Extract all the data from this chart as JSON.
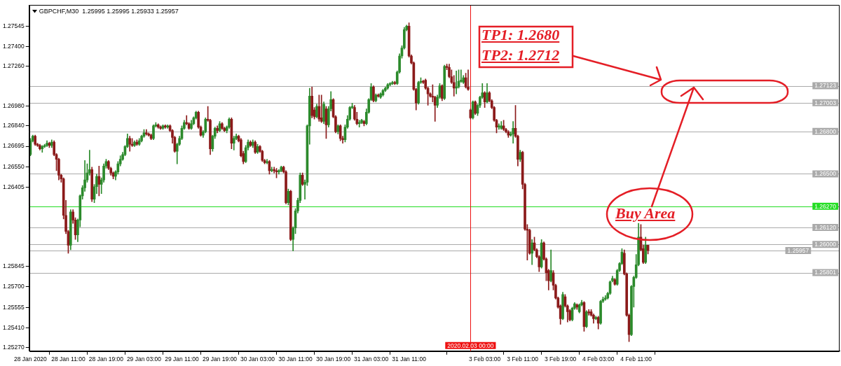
{
  "chart_data": {
    "type": "candlestick",
    "title": "GBPCHF,M30  1.25995 1.25995 1.25933 1.25957",
    "categories": [
      "28 Jan 2020",
      null,
      null,
      null,
      null,
      null,
      null,
      null,
      null,
      null,
      null,
      null,
      null,
      null,
      null,
      null,
      "28 Jan 11:00",
      null,
      null,
      null,
      null,
      null,
      null,
      null,
      null,
      null,
      null,
      null,
      null,
      null,
      null,
      null,
      "28 Jan 19:00",
      null,
      null,
      null,
      null,
      null,
      null,
      null,
      null,
      null,
      null,
      null,
      null,
      null,
      null,
      null,
      "29 Jan 03:00",
      null,
      null,
      null,
      null,
      null,
      null,
      null,
      null,
      null,
      null,
      null,
      null,
      null,
      null,
      null,
      "29 Jan 11:00",
      null,
      null,
      null,
      null,
      null,
      null,
      null,
      null,
      null,
      null,
      null,
      null,
      null,
      null,
      null,
      "29 Jan 19:00",
      null,
      null,
      null,
      null,
      null,
      null,
      null,
      null,
      null,
      null,
      null,
      null,
      null,
      null,
      null,
      "30 Jan 03:00",
      null,
      null,
      null,
      null,
      null,
      null,
      null,
      null,
      null,
      null,
      null,
      null,
      null,
      null,
      null,
      "30 Jan 11:00",
      null,
      null,
      null,
      null,
      null,
      null,
      null,
      null,
      null,
      null,
      null,
      null,
      null,
      null,
      null,
      "30 Jan 19:00",
      null,
      null,
      null,
      null,
      null,
      null,
      null,
      null,
      null,
      null,
      null,
      null,
      null,
      null,
      null,
      "31 Jan 03:00",
      null,
      null,
      null,
      null,
      null,
      null,
      null,
      null,
      null,
      null,
      null,
      null,
      null,
      null,
      null,
      "31 Jan 11:00",
      null,
      null,
      null,
      null,
      null,
      null,
      null,
      null,
      null,
      null,
      null,
      null,
      null,
      null,
      null,
      null,
      null,
      null,
      null,
      null,
      null,
      null,
      null,
      null,
      null,
      "2020.02.03 00:00",
      null,
      null,
      null,
      null,
      null,
      "3 Feb 03:00",
      null,
      null,
      null,
      null,
      null,
      null,
      null,
      null,
      null,
      null,
      null,
      null,
      null,
      null,
      null,
      "3 Feb 11:00",
      null,
      null,
      null,
      null,
      null,
      null,
      null,
      null,
      null,
      null,
      null,
      null,
      null,
      null,
      null,
      "3 Feb 19:00",
      null,
      null,
      null,
      null,
      null,
      null,
      null,
      null,
      null,
      null,
      null,
      null,
      null,
      null,
      null,
      "4 Feb 03:00",
      null,
      null,
      null,
      null,
      null,
      null,
      null,
      null,
      null,
      null,
      null,
      null,
      null,
      null,
      null,
      "4 Feb 11:00",
      null,
      null,
      null,
      null,
      null
    ],
    "ohlc": [
      [
        1.26636,
        1.2675,
        1.26628,
        1.26734
      ],
      [
        1.26734,
        1.26774,
        1.26725,
        1.26766
      ],
      [
        1.26766,
        1.26774,
        1.26701,
        1.26709
      ],
      [
        1.26709,
        1.26717,
        1.26693,
        1.26701
      ],
      [
        1.26701,
        1.26709,
        1.26668,
        1.26677
      ],
      [
        1.26677,
        1.26701,
        1.26652,
        1.26693
      ],
      [
        1.26693,
        1.26709,
        1.26685,
        1.26701
      ],
      [
        1.26701,
        1.26734,
        1.26693,
        1.26717
      ],
      [
        1.26717,
        1.26725,
        1.26685,
        1.26701
      ],
      [
        1.26701,
        1.26741,
        1.26685,
        1.26725
      ],
      [
        1.26725,
        1.26734,
        1.26628,
        1.26636
      ],
      [
        1.26636,
        1.26644,
        1.26522,
        1.26603
      ],
      [
        1.26603,
        1.26611,
        1.26457,
        1.2649
      ],
      [
        1.2649,
        1.26498,
        1.26441,
        1.26464
      ],
      [
        1.26464,
        1.26472,
        1.26181,
        1.26206
      ],
      [
        1.26206,
        1.26312,
        1.26076,
        1.26092
      ],
      [
        1.26092,
        1.261,
        1.25938,
        1.25995
      ],
      [
        1.25995,
        1.26246,
        1.25962,
        1.2623
      ],
      [
        1.2623,
        1.26246,
        1.2615,
        1.26173
      ],
      [
        1.26173,
        1.26189,
        1.26035,
        1.26068
      ],
      [
        1.26068,
        1.26181,
        1.26019,
        1.26173
      ],
      [
        1.26173,
        1.26352,
        1.26125,
        1.26344
      ],
      [
        1.26344,
        1.26417,
        1.2632,
        1.26401
      ],
      [
        1.26401,
        1.26595,
        1.26376,
        1.26457
      ],
      [
        1.26457,
        1.26571,
        1.26441,
        1.26506
      ],
      [
        1.26506,
        1.26668,
        1.2649,
        1.2653
      ],
      [
        1.2653,
        1.26547,
        1.26303,
        1.2632
      ],
      [
        1.2632,
        1.26425,
        1.26295,
        1.26409
      ],
      [
        1.26409,
        1.26498,
        1.2636,
        1.26482
      ],
      [
        1.26482,
        1.26555,
        1.26344,
        1.26425
      ],
      [
        1.26425,
        1.26472,
        1.2636,
        1.26457
      ],
      [
        1.26457,
        1.26571,
        1.26441,
        1.26555
      ],
      [
        1.26555,
        1.26603,
        1.26539,
        1.26587
      ],
      [
        1.26587,
        1.26595,
        1.2653,
        1.26539
      ],
      [
        1.26539,
        1.26547,
        1.2649,
        1.26506
      ],
      [
        1.26506,
        1.26514,
        1.26464,
        1.26482
      ],
      [
        1.26482,
        1.26522,
        1.26457,
        1.26514
      ],
      [
        1.26514,
        1.26587,
        1.26498,
        1.26571
      ],
      [
        1.26571,
        1.26628,
        1.26555,
        1.26603
      ],
      [
        1.26603,
        1.26652,
        1.26595,
        1.26636
      ],
      [
        1.26636,
        1.26701,
        1.26628,
        1.26693
      ],
      [
        1.26693,
        1.26782,
        1.26685,
        1.2675
      ],
      [
        1.2675,
        1.26766,
        1.2666,
        1.26709
      ],
      [
        1.26709,
        1.2675,
        1.26693,
        1.26701
      ],
      [
        1.26701,
        1.26734,
        1.26693,
        1.26725
      ],
      [
        1.26725,
        1.26741,
        1.26701,
        1.26709
      ],
      [
        1.26709,
        1.2675,
        1.26701,
        1.26734
      ],
      [
        1.26734,
        1.26774,
        1.26725,
        1.26766
      ],
      [
        1.26766,
        1.26814,
        1.26758,
        1.2679
      ],
      [
        1.2679,
        1.26814,
        1.26774,
        1.26782
      ],
      [
        1.26782,
        1.2679,
        1.26766,
        1.26774
      ],
      [
        1.26774,
        1.26782,
        1.26741,
        1.2675
      ],
      [
        1.2675,
        1.26847,
        1.26741,
        1.26839
      ],
      [
        1.26839,
        1.26863,
        1.26831,
        1.26847
      ],
      [
        1.26847,
        1.26855,
        1.26822,
        1.26831
      ],
      [
        1.26831,
        1.26839,
        1.26814,
        1.26822
      ],
      [
        1.26822,
        1.26847,
        1.26814,
        1.26839
      ],
      [
        1.26839,
        1.26847,
        1.26822,
        1.26831
      ],
      [
        1.26831,
        1.26847,
        1.26822,
        1.26839
      ],
      [
        1.26839,
        1.26847,
        1.26798,
        1.26806
      ],
      [
        1.26806,
        1.26814,
        1.26717,
        1.26758
      ],
      [
        1.26758,
        1.26766,
        1.26652,
        1.2666
      ],
      [
        1.2666,
        1.26717,
        1.26571,
        1.26709
      ],
      [
        1.26709,
        1.26766,
        1.26701,
        1.2675
      ],
      [
        1.2675,
        1.26839,
        1.26741,
        1.26822
      ],
      [
        1.26822,
        1.26879,
        1.26814,
        1.26863
      ],
      [
        1.26863,
        1.26912,
        1.26847,
        1.26855
      ],
      [
        1.26855,
        1.26863,
        1.26814,
        1.26822
      ],
      [
        1.26822,
        1.26879,
        1.26814,
        1.26855
      ],
      [
        1.26855,
        1.26904,
        1.26847,
        1.26896
      ],
      [
        1.26896,
        1.26944,
        1.26887,
        1.26936
      ],
      [
        1.26936,
        1.26944,
        1.26822,
        1.26831
      ],
      [
        1.26831,
        1.26839,
        1.26766,
        1.26774
      ],
      [
        1.26774,
        1.26806,
        1.26758,
        1.26798
      ],
      [
        1.26798,
        1.26896,
        1.2679,
        1.26887
      ],
      [
        1.26887,
        1.26977,
        1.26871,
        1.26879
      ],
      [
        1.26879,
        1.26887,
        1.26636,
        1.26677
      ],
      [
        1.26677,
        1.26774,
        1.2666,
        1.26766
      ],
      [
        1.26766,
        1.26831,
        1.2675,
        1.26822
      ],
      [
        1.26822,
        1.26839,
        1.2679,
        1.26806
      ],
      [
        1.26806,
        1.26871,
        1.26798,
        1.26855
      ],
      [
        1.26855,
        1.26863,
        1.26814,
        1.26822
      ],
      [
        1.26822,
        1.26831,
        1.26798,
        1.26806
      ],
      [
        1.26806,
        1.26839,
        1.2679,
        1.26831
      ],
      [
        1.26831,
        1.26896,
        1.26822,
        1.26887
      ],
      [
        1.26887,
        1.26896,
        1.26677,
        1.26717
      ],
      [
        1.26717,
        1.26766,
        1.26668,
        1.2675
      ],
      [
        1.2675,
        1.26782,
        1.26741,
        1.26766
      ],
      [
        1.26766,
        1.26774,
        1.26725,
        1.26734
      ],
      [
        1.26741,
        1.2675,
        1.2662,
        1.26628
      ],
      [
        1.26644,
        1.2666,
        1.26571,
        1.26587
      ],
      [
        1.26587,
        1.26701,
        1.26579,
        1.26685
      ],
      [
        1.26685,
        1.26741,
        1.26668,
        1.26725
      ],
      [
        1.26725,
        1.26734,
        1.26693,
        1.26701
      ],
      [
        1.26701,
        1.26741,
        1.26685,
        1.26725
      ],
      [
        1.26725,
        1.26734,
        1.26644,
        1.26652
      ],
      [
        1.26652,
        1.26709,
        1.26644,
        1.26693
      ],
      [
        1.26693,
        1.26701,
        1.26652,
        1.2666
      ],
      [
        1.2666,
        1.26668,
        1.26587,
        1.26595
      ],
      [
        1.26595,
        1.26603,
        1.26571,
        1.26579
      ],
      [
        1.26579,
        1.26603,
        1.26571,
        1.26587
      ],
      [
        1.26587,
        1.26595,
        1.26498,
        1.26522
      ],
      [
        1.26522,
        1.26547,
        1.26514,
        1.2653
      ],
      [
        1.2653,
        1.26547,
        1.26506,
        1.26522
      ],
      [
        1.26522,
        1.26539,
        1.26472,
        1.26514
      ],
      [
        1.26514,
        1.2653,
        1.26498,
        1.26522
      ],
      [
        1.26522,
        1.26555,
        1.26514,
        1.26547
      ],
      [
        1.26547,
        1.26555,
        1.26506,
        1.26514
      ],
      [
        1.26514,
        1.26522,
        1.26287,
        1.26295
      ],
      [
        1.26295,
        1.26393,
        1.26279,
        1.26376
      ],
      [
        1.26376,
        1.26384,
        1.26027,
        1.26035
      ],
      [
        1.26035,
        1.26125,
        1.25954,
        1.26117
      ],
      [
        1.26117,
        1.26254,
        1.26076,
        1.26238
      ],
      [
        1.26238,
        1.26328,
        1.26222,
        1.26312
      ],
      [
        1.26312,
        1.26506,
        1.26295,
        1.2649
      ],
      [
        1.2649,
        1.26506,
        1.26417,
        1.26425
      ],
      [
        1.26425,
        1.26457,
        1.2632,
        1.26441
      ],
      [
        1.26441,
        1.26847,
        1.26417,
        1.26839
      ],
      [
        1.26839,
        1.27106,
        1.26709,
        1.2705
      ],
      [
        1.2705,
        1.27115,
        1.26896,
        1.26912
      ],
      [
        1.26952,
        1.26969,
        1.26887,
        1.26904
      ],
      [
        1.26904,
        1.26993,
        1.26896,
        1.26977
      ],
      [
        1.26977,
        1.27058,
        1.26871,
        1.26887
      ],
      [
        1.26896,
        1.27058,
        1.26863,
        1.26871
      ],
      [
        1.26871,
        1.27009,
        1.26855,
        1.26993
      ],
      [
        1.2696,
        1.26977,
        1.2675,
        1.26847
      ],
      [
        1.26847,
        1.26977,
        1.26831,
        1.2696
      ],
      [
        1.2696,
        1.27082,
        1.26944,
        1.27025
      ],
      [
        1.27025,
        1.27033,
        1.26896,
        1.26904
      ],
      [
        1.26904,
        1.26912,
        1.2679,
        1.26798
      ],
      [
        1.26798,
        1.26847,
        1.26782,
        1.26839
      ],
      [
        1.26839,
        1.26847,
        1.26734,
        1.2675
      ],
      [
        1.2675,
        1.26766,
        1.26717,
        1.26741
      ],
      [
        1.26741,
        1.26847,
        1.26725,
        1.26831
      ],
      [
        1.26831,
        1.26912,
        1.26822,
        1.26887
      ],
      [
        1.26887,
        1.26977,
        1.26879,
        1.26969
      ],
      [
        1.26969,
        1.27001,
        1.2696,
        1.26977
      ],
      [
        1.26969,
        1.26985,
        1.26879,
        1.26887
      ],
      [
        1.26887,
        1.26936,
        1.26847,
        1.26855
      ],
      [
        1.26855,
        1.26879,
        1.26831,
        1.26863
      ],
      [
        1.26863,
        1.26887,
        1.26855,
        1.26879
      ],
      [
        1.26871,
        1.26879,
        1.26839,
        1.26855
      ],
      [
        1.26855,
        1.2696,
        1.26847,
        1.26936
      ],
      [
        1.26936,
        1.27033,
        1.26928,
        1.27025
      ],
      [
        1.27025,
        1.27139,
        1.27017,
        1.27115
      ],
      [
        1.27115,
        1.27123,
        1.27009,
        1.27017
      ],
      [
        1.27017,
        1.27066,
        1.27009,
        1.27058
      ],
      [
        1.27058,
        1.27066,
        1.27042,
        1.2705
      ],
      [
        1.27042,
        1.27074,
        1.27033,
        1.27066
      ],
      [
        1.27058,
        1.27098,
        1.2705,
        1.2709
      ],
      [
        1.2709,
        1.27115,
        1.27082,
        1.27106
      ],
      [
        1.27106,
        1.27139,
        1.27098,
        1.27131
      ],
      [
        1.27131,
        1.27147,
        1.27123,
        1.27139
      ],
      [
        1.27139,
        1.27155,
        1.27131,
        1.27147
      ],
      [
        1.27147,
        1.27155,
        1.27131,
        1.27139
      ],
      [
        1.27139,
        1.27228,
        1.27131,
        1.2722
      ],
      [
        1.2722,
        1.2735,
        1.27212,
        1.27334
      ],
      [
        1.27334,
        1.27407,
        1.27318,
        1.27391
      ],
      [
        1.27391,
        1.27537,
        1.27383,
        1.2752
      ],
      [
        1.2752,
        1.27553,
        1.27512,
        1.27545
      ],
      [
        1.27545,
        1.27569,
        1.27326,
        1.27334
      ],
      [
        1.27334,
        1.27342,
        1.27277,
        1.27285
      ],
      [
        1.27285,
        1.27293,
        1.2709,
        1.27098
      ],
      [
        1.27098,
        1.27106,
        1.26952,
        1.27001
      ],
      [
        1.27001,
        1.27155,
        1.26993,
        1.27147
      ],
      [
        1.27147,
        1.2718,
        1.27139,
        1.27155
      ],
      [
        1.27155,
        1.27163,
        1.27139,
        1.27147
      ],
      [
        1.27163,
        1.27171,
        1.27098,
        1.27106
      ],
      [
        1.27106,
        1.27115,
        1.26985,
        1.27066
      ],
      [
        1.27066,
        1.27074,
        1.27042,
        1.2705
      ],
      [
        1.2705,
        1.27131,
        1.27009,
        1.27042
      ],
      [
        1.27042,
        1.2705,
        1.26871,
        1.26985
      ],
      [
        1.26985,
        1.27058,
        1.26969,
        1.27042
      ],
      [
        1.27042,
        1.27139,
        1.27033,
        1.27123
      ],
      [
        1.27123,
        1.27131,
        1.27017,
        1.27033
      ],
      [
        1.27033,
        1.27269,
        1.27025,
        1.27261
      ],
      [
        1.27261,
        1.27277,
        1.27236,
        1.27253
      ],
      [
        1.27253,
        1.27277,
        1.2718,
        1.27188
      ],
      [
        1.27188,
        1.27236,
        1.27139,
        1.27147
      ],
      [
        1.27147,
        1.27196,
        1.2705,
        1.27106
      ],
      [
        1.27106,
        1.27228,
        1.27066,
        1.27115
      ],
      [
        1.27115,
        1.27236,
        1.27106,
        1.27155
      ],
      [
        1.27155,
        1.27236,
        1.27147,
        1.27163
      ],
      [
        1.27147,
        1.27196,
        1.27139,
        1.2718
      ],
      [
        1.2718,
        1.27212,
        1.27106,
        1.27115
      ],
      [
        1.27115,
        1.27236,
        1.2709,
        1.27098
      ],
      [
        1.26952,
        1.2696,
        1.26887,
        1.26896
      ],
      [
        1.26896,
        1.27017,
        1.26887,
        1.27009
      ],
      [
        1.27009,
        1.27017,
        1.2692,
        1.26928
      ],
      [
        1.26928,
        1.26993,
        1.26912,
        1.26985
      ],
      [
        1.26985,
        1.2705,
        1.26969,
        1.27042
      ],
      [
        1.27042,
        1.27139,
        1.27033,
        1.27074
      ],
      [
        1.27074,
        1.27082,
        1.26969,
        1.27009
      ],
      [
        1.27009,
        1.27139,
        1.27001,
        1.27074
      ],
      [
        1.27074,
        1.27082,
        1.27009,
        1.27017
      ],
      [
        1.27017,
        1.27025,
        1.2696,
        1.26969
      ],
      [
        1.26969,
        1.26977,
        1.26871,
        1.26879
      ],
      [
        1.26879,
        1.26887,
        1.2679,
        1.26831
      ],
      [
        1.26831,
        1.26855,
        1.26814,
        1.26839
      ],
      [
        1.26822,
        1.26871,
        1.26814,
        1.26839
      ],
      [
        1.26839,
        1.26879,
        1.26806,
        1.26814
      ],
      [
        1.26814,
        1.26822,
        1.2679,
        1.26798
      ],
      [
        1.26798,
        1.26806,
        1.26758,
        1.26774
      ],
      [
        1.26774,
        1.26798,
        1.26766,
        1.26782
      ],
      [
        1.26782,
        1.26871,
        1.26717,
        1.26822
      ],
      [
        1.26822,
        1.26985,
        1.26758,
        1.26766
      ],
      [
        1.26766,
        1.26774,
        1.26555,
        1.26603
      ],
      [
        1.26603,
        1.26668,
        1.26587,
        1.26652
      ],
      [
        1.26652,
        1.2666,
        1.26393,
        1.26425
      ],
      [
        1.26425,
        1.26433,
        1.261,
        1.26109
      ],
      [
        1.26109,
        1.26141,
        1.25889,
        1.261
      ],
      [
        1.261,
        1.26109,
        1.2593,
        1.25938
      ],
      [
        1.25938,
        1.26035,
        1.25857,
        1.26011
      ],
      [
        1.26011,
        1.26052,
        1.25954,
        1.25962
      ],
      [
        1.25962,
        1.2597,
        1.25906,
        1.25914
      ],
      [
        1.25914,
        1.25922,
        1.25808,
        1.25841
      ],
      [
        1.25841,
        1.26035,
        1.25833,
        1.26011
      ],
      [
        1.26011,
        1.26019,
        1.25889,
        1.25897
      ],
      [
        1.25897,
        1.25906,
        1.25743,
        1.258
      ],
      [
        1.25816,
        1.25824,
        1.25678,
        1.25743
      ],
      [
        1.25743,
        1.25962,
        1.25735,
        1.25816
      ],
      [
        1.258,
        1.25816,
        1.25678,
        1.25711
      ],
      [
        1.25711,
        1.25719,
        1.25613,
        1.25621
      ],
      [
        1.25621,
        1.25629,
        1.25549,
        1.25557
      ],
      [
        1.25565,
        1.25573,
        1.25435,
        1.25475
      ],
      [
        1.25475,
        1.25662,
        1.25467,
        1.25646
      ],
      [
        1.2563,
        1.25646,
        1.25557,
        1.25565
      ],
      [
        1.25565,
        1.25573,
        1.25451,
        1.25524
      ],
      [
        1.25532,
        1.2554,
        1.25459,
        1.25467
      ],
      [
        1.25467,
        1.25557,
        1.25459,
        1.25549
      ],
      [
        1.25549,
        1.25589,
        1.2554,
        1.25581
      ],
      [
        1.25573,
        1.25581,
        1.2554,
        1.25557
      ],
      [
        1.25524,
        1.25581,
        1.25516,
        1.25573
      ],
      [
        1.25573,
        1.25605,
        1.25565,
        1.25589
      ],
      [
        1.25589,
        1.25597,
        1.25386,
        1.25419
      ],
      [
        1.25419,
        1.25532,
        1.25411,
        1.25524
      ],
      [
        1.25524,
        1.2554,
        1.255,
        1.25516
      ],
      [
        1.25524,
        1.2554,
        1.25492,
        1.255
      ],
      [
        1.255,
        1.25508,
        1.25443,
        1.25475
      ],
      [
        1.25475,
        1.25492,
        1.25467,
        1.25484
      ],
      [
        1.25484,
        1.25492,
        1.25402,
        1.25443
      ],
      [
        1.25443,
        1.25605,
        1.25435,
        1.25598
      ],
      [
        1.25598,
        1.25629,
        1.25589,
        1.25613
      ],
      [
        1.25613,
        1.25638,
        1.25605,
        1.25621
      ],
      [
        1.25621,
        1.25662,
        1.25613,
        1.25654
      ],
      [
        1.25654,
        1.25743,
        1.25646,
        1.25735
      ],
      [
        1.25743,
        1.25776,
        1.25735,
        1.2576
      ],
      [
        1.25751,
        1.2576,
        1.25711,
        1.25719
      ],
      [
        1.25719,
        1.25824,
        1.25711,
        1.25816
      ],
      [
        1.25816,
        1.25873,
        1.25808,
        1.25865
      ],
      [
        1.25865,
        1.2597,
        1.25857,
        1.25946
      ],
      [
        1.25938,
        1.25962,
        1.25784,
        1.25792
      ],
      [
        1.25792,
        1.258,
        1.25492,
        1.255
      ],
      [
        1.255,
        1.25508,
        1.25313,
        1.25362
      ],
      [
        1.25362,
        1.25711,
        1.25354,
        1.25703
      ],
      [
        1.25703,
        1.25776,
        1.25557,
        1.25767
      ],
      [
        1.25767,
        1.2593,
        1.2576,
        1.25857
      ],
      [
        1.25857,
        1.2615,
        1.25849,
        1.26052
      ],
      [
        1.26052,
        1.26141,
        1.25954,
        1.25962
      ],
      [
        1.2597,
        1.25995,
        1.25865,
        1.25873
      ],
      [
        1.25873,
        1.26052,
        1.25865,
        1.25995
      ],
      [
        1.25995,
        1.25995,
        1.25933,
        1.25957
      ]
    ],
    "colors": [
      "#2b8a2b",
      "#2b8a2b",
      "#8b1a1a",
      "#8b1a1a",
      "#8b1a1a",
      "#2b8a2b",
      "#2b8a2b",
      "#2b8a2b",
      "#8b1a1a",
      "#2b8a2b",
      "#8b1a1a",
      "#8b1a1a",
      "#8b1a1a",
      "#8b1a1a",
      "#8b1a1a",
      "#8b1a1a",
      "#8b1a1a",
      "#2b8a2b",
      "#8b1a1a",
      "#8b1a1a",
      "#2b8a2b",
      "#2b8a2b",
      "#2b8a2b",
      "#2b8a2b",
      "#2b8a2b",
      "#2b8a2b",
      "#8b1a1a",
      "#2b8a2b",
      "#2b8a2b",
      "#8b1a1a",
      "#2b8a2b",
      "#2b8a2b",
      "#2b8a2b",
      "#8b1a1a",
      "#8b1a1a",
      "#8b1a1a",
      "#2b8a2b",
      "#2b8a2b",
      "#2b8a2b",
      "#2b8a2b",
      "#2b8a2b",
      "#2b8a2b",
      "#8b1a1a",
      "#8b1a1a",
      "#2b8a2b",
      "#8b1a1a",
      "#2b8a2b",
      "#2b8a2b",
      "#2b8a2b",
      "#8b1a1a",
      "#8b1a1a",
      "#8b1a1a",
      "#2b8a2b",
      "#2b8a2b",
      "#8b1a1a",
      "#8b1a1a",
      "#2b8a2b",
      "#8b1a1a",
      "#2b8a2b",
      "#8b1a1a",
      "#8b1a1a",
      "#8b1a1a",
      "#2b8a2b",
      "#2b8a2b",
      "#2b8a2b",
      "#2b8a2b",
      "#8b1a1a",
      "#8b1a1a",
      "#2b8a2b",
      "#2b8a2b",
      "#2b8a2b",
      "#8b1a1a",
      "#8b1a1a",
      "#2b8a2b",
      "#2b8a2b",
      "#8b1a1a",
      "#8b1a1a",
      "#2b8a2b",
      "#2b8a2b",
      "#8b1a1a",
      "#2b8a2b",
      "#8b1a1a",
      "#8b1a1a",
      "#2b8a2b",
      "#2b8a2b",
      "#8b1a1a",
      "#2b8a2b",
      "#2b8a2b",
      "#8b1a1a",
      "#8b1a1a",
      "#8b1a1a",
      "#2b8a2b",
      "#2b8a2b",
      "#8b1a1a",
      "#2b8a2b",
      "#8b1a1a",
      "#2b8a2b",
      "#8b1a1a",
      "#8b1a1a",
      "#8b1a1a",
      "#2b8a2b",
      "#8b1a1a",
      "#2b8a2b",
      "#8b1a1a",
      "#8b1a1a",
      "#2b8a2b",
      "#2b8a2b",
      "#8b1a1a",
      "#8b1a1a",
      "#2b8a2b",
      "#8b1a1a",
      "#2b8a2b",
      "#2b8a2b",
      "#2b8a2b",
      "#2b8a2b",
      "#8b1a1a",
      "#2b8a2b",
      "#2b8a2b",
      "#2b8a2b",
      "#8b1a1a",
      "#8b1a1a",
      "#2b8a2b",
      "#8b1a1a",
      "#8b1a1a",
      "#2b8a2b",
      "#8b1a1a",
      "#2b8a2b",
      "#2b8a2b",
      "#8b1a1a",
      "#8b1a1a",
      "#2b8a2b",
      "#8b1a1a",
      "#8b1a1a",
      "#2b8a2b",
      "#2b8a2b",
      "#2b8a2b",
      "#2b8a2b",
      "#8b1a1a",
      "#8b1a1a",
      "#2b8a2b",
      "#2b8a2b",
      "#8b1a1a",
      "#2b8a2b",
      "#2b8a2b",
      "#2b8a2b",
      "#8b1a1a",
      "#2b8a2b",
      "#8b1a1a",
      "#2b8a2b",
      "#2b8a2b",
      "#2b8a2b",
      "#2b8a2b",
      "#2b8a2b",
      "#2b8a2b",
      "#8b1a1a",
      "#2b8a2b",
      "#2b8a2b",
      "#2b8a2b",
      "#2b8a2b",
      "#2b8a2b",
      "#8b1a1a",
      "#8b1a1a",
      "#8b1a1a",
      "#8b1a1a",
      "#2b8a2b",
      "#2b8a2b",
      "#8b1a1a",
      "#8b1a1a",
      "#8b1a1a",
      "#8b1a1a",
      "#8b1a1a",
      "#8b1a1a",
      "#2b8a2b",
      "#2b8a2b",
      "#8b1a1a",
      "#2b8a2b",
      "#8b1a1a",
      "#8b1a1a",
      "#8b1a1a",
      "#8b1a1a",
      "#2b8a2b",
      "#2b8a2b",
      "#2b8a2b",
      "#2b8a2b",
      "#8b1a1a",
      "#8b1a1a",
      "#8b1a1a",
      "#2b8a2b",
      "#8b1a1a",
      "#2b8a2b",
      "#2b8a2b",
      "#2b8a2b",
      "#8b1a1a",
      "#2b8a2b",
      "#8b1a1a",
      "#8b1a1a",
      "#8b1a1a",
      "#8b1a1a",
      "#2b8a2b",
      "#2b8a2b",
      "#8b1a1a",
      "#8b1a1a",
      "#8b1a1a",
      "#2b8a2b",
      "#2b8a2b",
      "#8b1a1a",
      "#8b1a1a",
      "#2b8a2b",
      "#8b1a1a",
      "#8b1a1a",
      "#8b1a1a",
      "#8b1a1a",
      "#2b8a2b",
      "#8b1a1a",
      "#8b1a1a",
      "#8b1a1a",
      "#2b8a2b",
      "#8b1a1a",
      "#8b1a1a",
      "#8b1a1a",
      "#2b8a2b",
      "#8b1a1a",
      "#8b1a1a",
      "#8b1a1a",
      "#8b1a1a",
      "#2b8a2b",
      "#8b1a1a",
      "#8b1a1a",
      "#8b1a1a",
      "#2b8a2b",
      "#2b8a2b",
      "#8b1a1a",
      "#2b8a2b",
      "#2b8a2b",
      "#8b1a1a",
      "#2b8a2b",
      "#8b1a1a",
      "#8b1a1a",
      "#8b1a1a",
      "#2b8a2b",
      "#8b1a1a",
      "#2b8a2b",
      "#2b8a2b",
      "#2b8a2b",
      "#2b8a2b",
      "#2b8a2b",
      "#2b8a2b",
      "#8b1a1a",
      "#2b8a2b",
      "#2b8a2b",
      "#2b8a2b",
      "#8b1a1a",
      "#8b1a1a",
      "#8b1a1a",
      "#2b8a2b",
      "#2b8a2b",
      "#2b8a2b",
      "#2b8a2b",
      "#8b1a1a",
      "#8b1a1a",
      "#2b8a2b",
      "#8b1a1a"
    ],
    "ylim": [
      1.25245,
      1.27695
    ],
    "yticks": [
      {
        "value": 1.2527,
        "label": "1.25270"
      },
      {
        "value": 1.2541,
        "label": "1.25410"
      },
      {
        "value": 1.25555,
        "label": "1.25555"
      },
      {
        "value": 1.257,
        "label": "1.25700"
      },
      {
        "value": 1.25845,
        "label": "1.25845"
      },
      {
        "value": 1.26405,
        "label": "1.26405"
      },
      {
        "value": 1.2655,
        "label": "1.26550"
      },
      {
        "value": 1.26695,
        "label": "1.26695"
      },
      {
        "value": 1.2684,
        "label": "1.26840"
      },
      {
        "value": 1.2698,
        "label": "1.26980"
      },
      {
        "value": 1.2726,
        "label": "1.27260"
      },
      {
        "value": 1.274,
        "label": "1.27400"
      },
      {
        "value": 1.27545,
        "label": "1.27545"
      }
    ],
    "ref_lines": [
      {
        "axis": "y",
        "value": 1.27123,
        "label": "1.27123",
        "color": "#aaaaaa"
      },
      {
        "axis": "y",
        "value": 1.27003,
        "label": "1.27003",
        "color": "#aaaaaa"
      },
      {
        "axis": "y",
        "value": 1.268,
        "label": "1.26800",
        "color": "#aaaaaa"
      },
      {
        "axis": "y",
        "value": 1.265,
        "label": "1.26500",
        "color": "#aaaaaa"
      },
      {
        "axis": "y",
        "value": 1.2627,
        "label": "1.26270",
        "color": "#22dd22"
      },
      {
        "axis": "y",
        "value": 1.2612,
        "label": "1.26120",
        "color": "#aaaaaa"
      },
      {
        "axis": "y",
        "value": 1.26,
        "label": "1.26000",
        "color": "#aaaaaa"
      },
      {
        "axis": "y",
        "value": 1.25957,
        "label": "1.25957",
        "color": "#aaaaaa"
      },
      {
        "axis": "y",
        "value": 1.25801,
        "label": "1.25801",
        "color": "#aaaaaa"
      },
      {
        "axis": "x",
        "value": "2020.02.03 00:00",
        "color": "#ee1111"
      }
    ],
    "annotations": [
      "TP1: 1.2680",
      "TP2: 1.2712",
      "Buy Area"
    ]
  }
}
